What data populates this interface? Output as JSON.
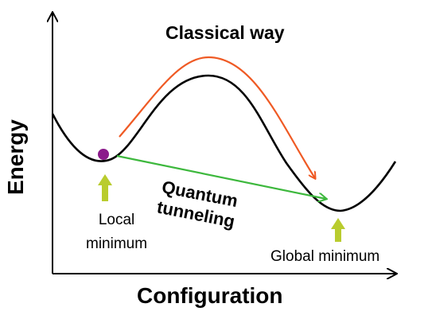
{
  "diagram": {
    "title": "Classical way",
    "local_label_line1": "Local",
    "local_label_line2": "minimum",
    "global_label": "Global minimum",
    "tunnel_label_line1": "Quantum",
    "tunnel_label_line2": "tunneling",
    "x_axis_label": "Configuration",
    "y_axis_label": "Energy"
  },
  "colors": {
    "curve": "#000000",
    "classical_arrow": "#ef5a24",
    "tunnel_arrow": "#3db83d",
    "marker_arrows": "#b9cc2e",
    "particle": "#8b1a8b"
  },
  "icons": {
    "particle": "particle-dot-icon",
    "pointer": "up-arrow-icon"
  }
}
